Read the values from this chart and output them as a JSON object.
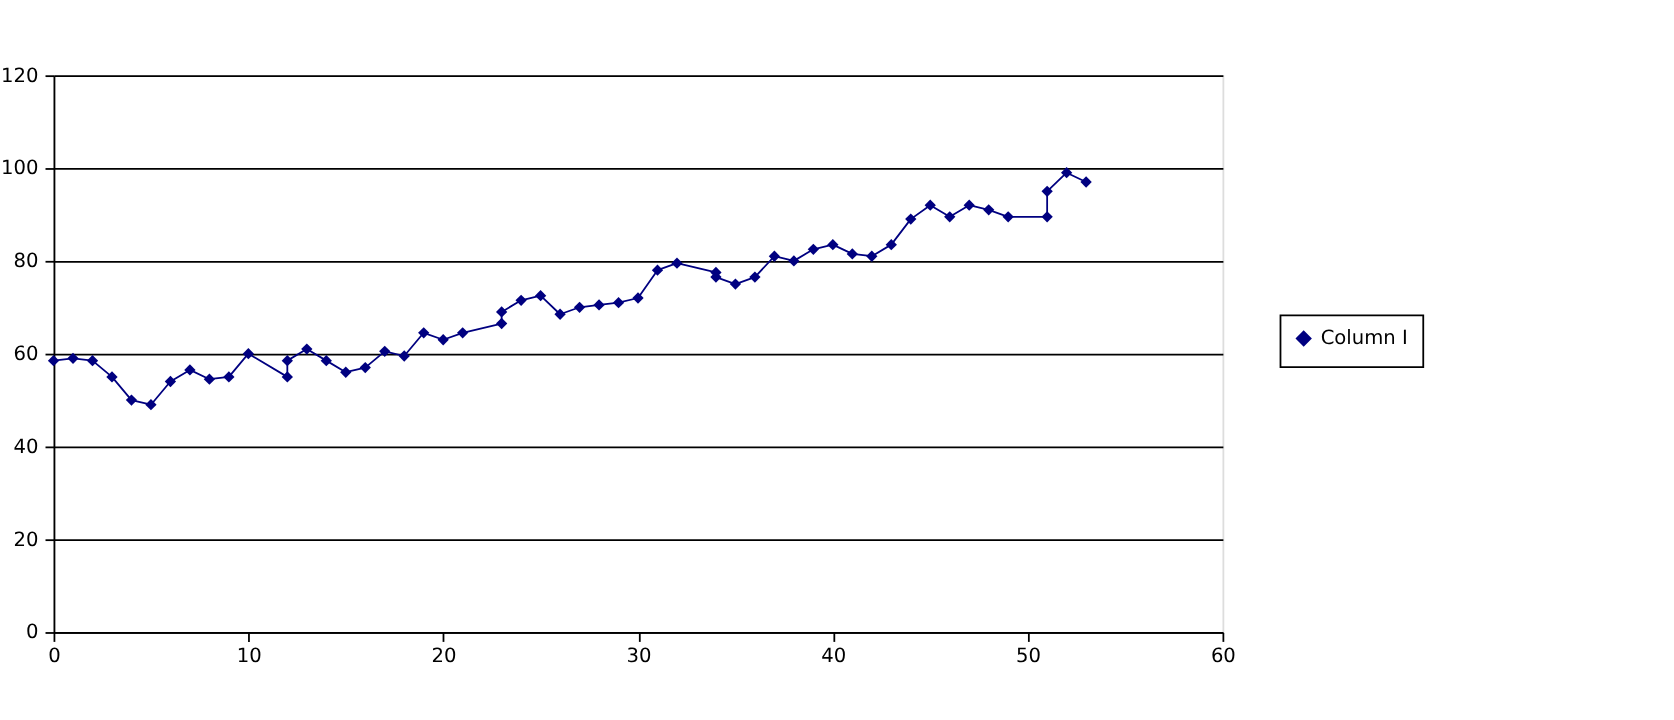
{
  "chart_data": {
    "type": "line",
    "x": [
      0,
      1,
      2,
      3,
      4,
      5,
      6,
      7,
      8,
      9,
      10,
      12,
      12,
      13,
      14,
      15,
      16,
      17,
      18,
      19,
      20,
      21,
      23,
      23,
      24,
      25,
      26,
      27,
      28,
      29,
      30,
      31,
      32,
      34,
      34,
      35,
      36,
      37,
      38,
      39,
      40,
      41,
      42,
      43,
      44,
      45,
      46,
      47,
      48,
      49,
      51,
      51,
      52,
      53
    ],
    "series": [
      {
        "name": "Column I",
        "color": "#000080",
        "values": [
          58.5,
          59,
          58.5,
          55,
          50,
          49,
          54,
          56.5,
          54.5,
          55,
          60,
          55,
          58.5,
          61,
          58.5,
          56,
          57,
          60.5,
          59.5,
          64.5,
          63,
          64.5,
          66.5,
          69,
          71.5,
          72.5,
          68.5,
          70,
          70.5,
          71,
          72,
          78,
          79.5,
          77.5,
          76.5,
          75,
          76.5,
          81,
          80,
          82.5,
          83.5,
          81.5,
          81,
          83.5,
          89,
          92,
          89.5,
          92,
          91,
          89.5,
          89.5,
          95,
          99,
          97
        ]
      }
    ],
    "xlim": [
      0,
      60
    ],
    "ylim": [
      0,
      120
    ],
    "xticks": [
      0,
      10,
      20,
      30,
      40,
      50,
      60
    ],
    "yticks": [
      0,
      20,
      40,
      60,
      80,
      100,
      120
    ],
    "grid": "y",
    "legend": "right",
    "marker": "diamond",
    "line_style": "solid"
  }
}
